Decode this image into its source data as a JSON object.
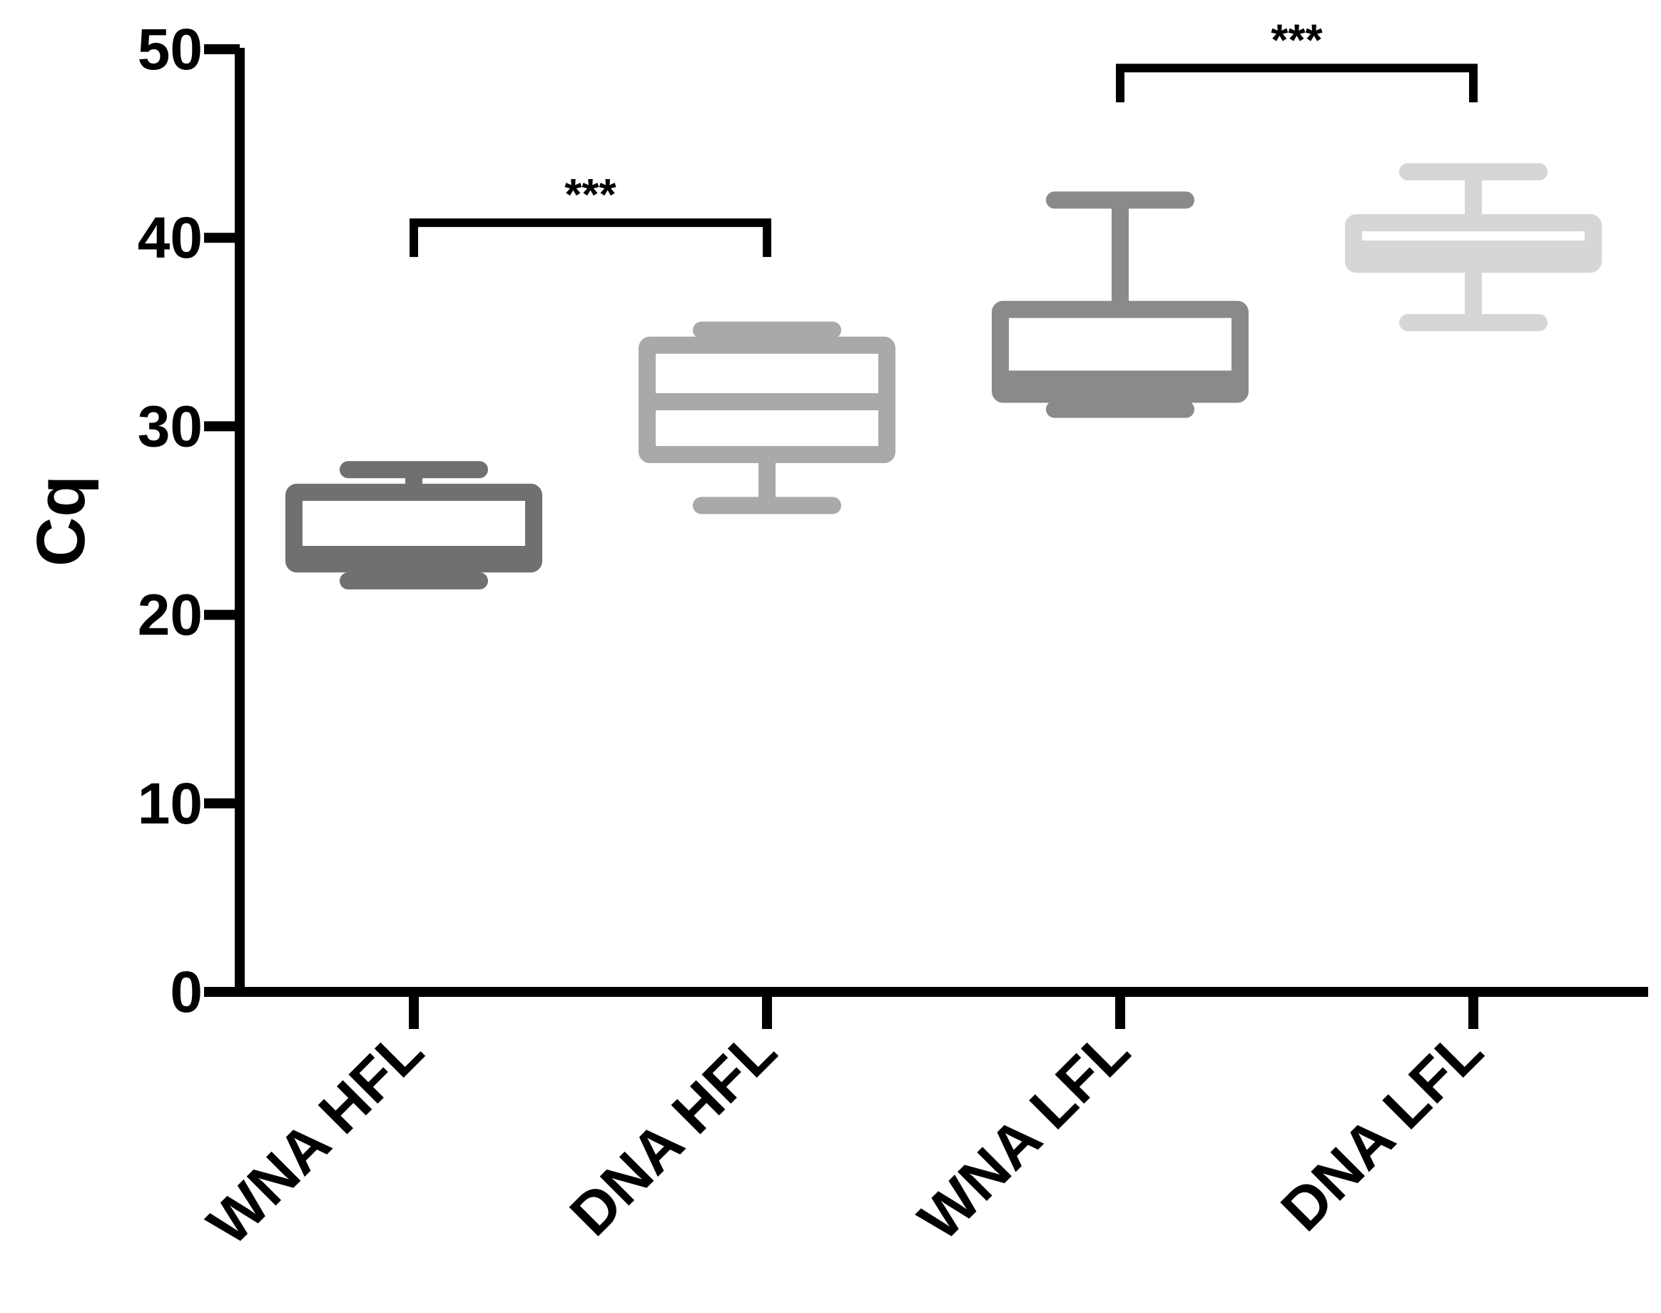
{
  "chart_data": {
    "type": "box",
    "title": "",
    "xlabel": "",
    "ylabel": "Cq",
    "ylim": [
      0,
      50
    ],
    "yticks": [
      0,
      10,
      20,
      30,
      40,
      50
    ],
    "ytick_labels": [
      "0",
      "10",
      "20",
      "30",
      "40",
      "50"
    ],
    "grid": false,
    "legend": "none",
    "categories": [
      "WNA HFL",
      "DNA HFL",
      "WNA LFL",
      "DNA LFL"
    ],
    "boxes": [
      {
        "category": "WNA HFL",
        "min": 21.8,
        "q1": 22.7,
        "median": 23.2,
        "q3": 26.5,
        "max": 27.7,
        "color": "#707070"
      },
      {
        "category": "DNA HFL",
        "min": 25.8,
        "q1": 28.5,
        "median": 31.3,
        "q3": 34.3,
        "max": 35.1,
        "color": "#a9a9a9"
      },
      {
        "category": "WNA LFL",
        "min": 30.9,
        "q1": 31.7,
        "median": 32.5,
        "q3": 36.2,
        "max": 42.0,
        "color": "#8a8a8a"
      },
      {
        "category": "DNA LFL",
        "min": 35.5,
        "q1": 38.6,
        "median": 39.4,
        "q3": 40.8,
        "max": 43.5,
        "color": "#d6d6d6"
      }
    ],
    "significance": [
      {
        "from": "WNA HFL",
        "to": "DNA HFL",
        "y": 40.8,
        "label": "***"
      },
      {
        "from": "WNA LFL",
        "to": "DNA LFL",
        "y": 49.0,
        "label": "***"
      }
    ]
  }
}
